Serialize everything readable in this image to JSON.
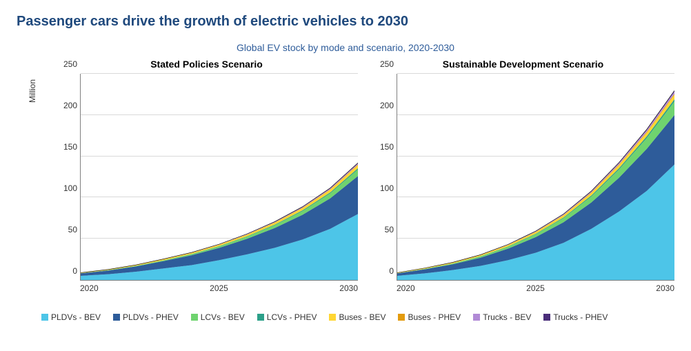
{
  "title": "Passenger cars drive the growth of electric vehicles to 2030",
  "subtitle": "Global EV stock by mode and scenario, 2020-2030",
  "ylabel": "Million",
  "ylim": [
    0,
    250
  ],
  "ytick_step": 50,
  "xlim": [
    2020,
    2030
  ],
  "xticks": [
    2020,
    2025,
    2030
  ],
  "background_color": "#ffffff",
  "grid_color": "#d9d9d9",
  "axis_color": "#808080",
  "title_color": "#1f497d",
  "subtitle_color": "#2e5c9a",
  "title_fontsize": 20,
  "subtitle_fontsize": 14,
  "panel_title_fontsize": 14,
  "tick_fontsize": 12,
  "legend_fontsize": 12,
  "series": [
    {
      "key": "pldv_bev",
      "label": "PLDVs - BEV",
      "color": "#4dc5e8"
    },
    {
      "key": "pldv_phev",
      "label": "PLDVs - PHEV",
      "color": "#2e5c9a"
    },
    {
      "key": "lcv_bev",
      "label": "LCVs - BEV",
      "color": "#6fd36f"
    },
    {
      "key": "lcv_phev",
      "label": "LCVs - PHEV",
      "color": "#2ca089"
    },
    {
      "key": "bus_bev",
      "label": "Buses - BEV",
      "color": "#ffd633"
    },
    {
      "key": "bus_phev",
      "label": "Buses - PHEV",
      "color": "#e39b0e"
    },
    {
      "key": "truck_bev",
      "label": "Trucks - BEV",
      "color": "#b18ad6"
    },
    {
      "key": "truck_phev",
      "label": "Trucks - PHEV",
      "color": "#4a2e7a"
    }
  ],
  "panels": [
    {
      "title": "Stated Policies Scenario",
      "years": [
        2020,
        2021,
        2022,
        2023,
        2024,
        2025,
        2026,
        2027,
        2028,
        2029,
        2030
      ],
      "data": {
        "pldv_bev": [
          5,
          7,
          10,
          14,
          18,
          24,
          31,
          39,
          49,
          62,
          80
        ],
        "pldv_phev": [
          3,
          4.5,
          6.5,
          9,
          12,
          15,
          19,
          24,
          30,
          37,
          46
        ],
        "lcv_bev": [
          0.2,
          0.4,
          0.6,
          0.9,
          1.3,
          1.8,
          2.5,
          3.4,
          4.5,
          6.0,
          8.0
        ],
        "lcv_phev": [
          0.05,
          0.08,
          0.12,
          0.18,
          0.25,
          0.35,
          0.5,
          0.7,
          0.9,
          1.2,
          1.5
        ],
        "bus_bev": [
          0.5,
          0.65,
          0.85,
          1.1,
          1.3,
          1.6,
          1.9,
          2.3,
          2.7,
          3.2,
          3.8
        ],
        "bus_phev": [
          0.1,
          0.12,
          0.15,
          0.18,
          0.22,
          0.27,
          0.33,
          0.4,
          0.48,
          0.56,
          0.65
        ],
        "truck_bev": [
          0.02,
          0.05,
          0.09,
          0.15,
          0.22,
          0.32,
          0.45,
          0.6,
          0.8,
          1.05,
          1.35
        ],
        "truck_phev": [
          0.01,
          0.02,
          0.04,
          0.07,
          0.1,
          0.15,
          0.22,
          0.3,
          0.4,
          0.52,
          0.65
        ]
      }
    },
    {
      "title": "Sustainable Development Scenario",
      "years": [
        2020,
        2021,
        2022,
        2023,
        2024,
        2025,
        2026,
        2027,
        2028,
        2029,
        2030
      ],
      "data": {
        "pldv_bev": [
          5,
          8,
          12,
          17,
          24,
          33,
          45,
          62,
          83,
          108,
          140
        ],
        "pldv_phev": [
          3,
          5,
          7,
          10,
          14,
          19,
          25,
          32,
          41,
          51,
          60
        ],
        "lcv_bev": [
          0.2,
          0.5,
          0.9,
          1.5,
          2.3,
          3.5,
          5.0,
          7.2,
          10.0,
          13.0,
          16.5
        ],
        "lcv_phev": [
          0.05,
          0.1,
          0.18,
          0.3,
          0.45,
          0.65,
          0.9,
          1.2,
          1.6,
          2.1,
          2.7
        ],
        "bus_bev": [
          0.5,
          0.7,
          0.95,
          1.25,
          1.6,
          2.0,
          2.5,
          3.1,
          3.8,
          4.6,
          5.5
        ],
        "bus_phev": [
          0.1,
          0.13,
          0.17,
          0.22,
          0.28,
          0.36,
          0.45,
          0.56,
          0.68,
          0.82,
          1.0
        ],
        "truck_bev": [
          0.02,
          0.06,
          0.13,
          0.23,
          0.38,
          0.58,
          0.85,
          1.2,
          1.65,
          2.2,
          2.8
        ],
        "truck_phev": [
          0.01,
          0.03,
          0.06,
          0.1,
          0.17,
          0.26,
          0.38,
          0.52,
          0.7,
          0.9,
          1.1
        ]
      }
    }
  ]
}
